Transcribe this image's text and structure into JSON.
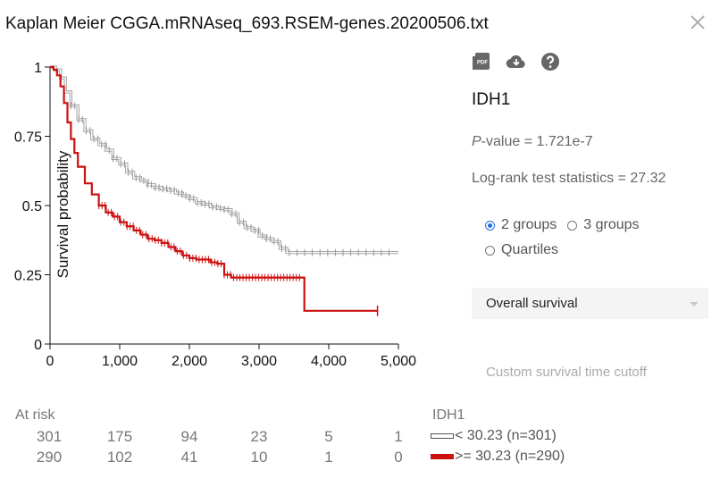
{
  "header": {
    "title": "Kaplan Meier CGGA.mRNAseq_693.RSEM-genes.20200506.txt"
  },
  "toolbar": {
    "icons": [
      "pdf-icon",
      "cloud-download-icon",
      "help-icon"
    ]
  },
  "panel": {
    "gene": "IDH1",
    "pvalue_label": "P",
    "pvalue_text": "-value = 1.721e-7",
    "logrank": "Log-rank test statistics = 27.32",
    "group_options": [
      "2 groups",
      "3 groups",
      "Quartiles"
    ],
    "selected_group": "2 groups",
    "survival_select": "Overall survival",
    "cutoff_link": "Custom survival time cutoff"
  },
  "at_risk": {
    "label": "At risk",
    "rows": [
      [
        "301",
        "175",
        "94",
        "23",
        "5",
        "1"
      ],
      [
        "290",
        "102",
        "41",
        "10",
        "1",
        "0"
      ]
    ]
  },
  "legend": {
    "title": "IDH1",
    "items": [
      {
        "label": "< 30.23 (n=301)",
        "color": "#ffffff"
      },
      {
        "label": ">= 30.23 (n=290)",
        "color": "#cc1111"
      }
    ]
  },
  "chart_data": {
    "type": "line",
    "ylabel": "Survival probability",
    "xlabel": "",
    "xlim": [
      0,
      5000
    ],
    "ylim": [
      0,
      1
    ],
    "xticks": [
      "0",
      "1,000",
      "2,000",
      "3,000",
      "4,000",
      "5,000"
    ],
    "yticks": [
      "0",
      "0.25",
      "0.5",
      "0.75",
      "1"
    ],
    "series": [
      {
        "name": "< 30.23 (n=301)",
        "color": "#999999",
        "x": [
          0,
          80,
          150,
          220,
          300,
          400,
          500,
          600,
          700,
          800,
          900,
          1000,
          1100,
          1200,
          1300,
          1400,
          1500,
          1600,
          1700,
          1800,
          1900,
          2000,
          2100,
          2200,
          2300,
          2400,
          2500,
          2600,
          2700,
          2800,
          2900,
          3000,
          3100,
          3200,
          3300,
          3400,
          4000,
          5000
        ],
        "y": [
          1,
          0.99,
          0.96,
          0.91,
          0.86,
          0.81,
          0.77,
          0.74,
          0.72,
          0.7,
          0.67,
          0.65,
          0.62,
          0.6,
          0.59,
          0.575,
          0.565,
          0.56,
          0.555,
          0.545,
          0.535,
          0.525,
          0.51,
          0.505,
          0.495,
          0.49,
          0.485,
          0.47,
          0.44,
          0.42,
          0.41,
          0.39,
          0.38,
          0.37,
          0.345,
          0.33,
          0.33,
          0.33
        ]
      },
      {
        "name": ">= 30.23 (n=290)",
        "color": "#cc1111",
        "x": [
          0,
          50,
          100,
          150,
          200,
          250,
          300,
          350,
          400,
          500,
          600,
          700,
          800,
          900,
          1000,
          1100,
          1200,
          1300,
          1400,
          1500,
          1600,
          1700,
          1800,
          1900,
          2000,
          2100,
          2200,
          2300,
          2400,
          2500,
          2600,
          3000,
          3600,
          3650,
          3700,
          4700
        ],
        "y": [
          1,
          0.99,
          0.97,
          0.93,
          0.87,
          0.8,
          0.74,
          0.69,
          0.64,
          0.58,
          0.54,
          0.5,
          0.475,
          0.46,
          0.44,
          0.425,
          0.41,
          0.395,
          0.38,
          0.375,
          0.365,
          0.35,
          0.335,
          0.32,
          0.31,
          0.305,
          0.305,
          0.295,
          0.29,
          0.25,
          0.24,
          0.24,
          0.24,
          0.12,
          0.12,
          0.12
        ]
      }
    ]
  }
}
